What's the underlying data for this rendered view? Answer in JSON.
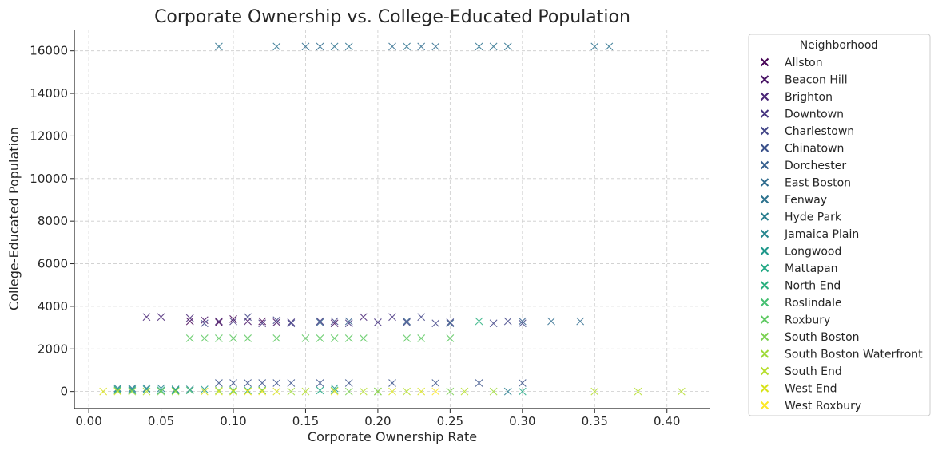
{
  "chart_data": {
    "type": "scatter",
    "title": "Corporate Ownership vs. College-Educated Population",
    "xlabel": "Corporate Ownership Rate",
    "ylabel": "College-Educated Population",
    "xlim": [
      -0.01,
      0.43
    ],
    "ylim": [
      -800,
      17000
    ],
    "xticks": [
      0.0,
      0.05,
      0.1,
      0.15,
      0.2,
      0.25,
      0.3,
      0.35,
      0.4
    ],
    "xtick_labels": [
      "0.00",
      "0.05",
      "0.10",
      "0.15",
      "0.20",
      "0.25",
      "0.30",
      "0.35",
      "0.40"
    ],
    "yticks": [
      0,
      2000,
      4000,
      6000,
      8000,
      10000,
      12000,
      14000,
      16000
    ],
    "ytick_labels": [
      "0",
      "2000",
      "4000",
      "6000",
      "8000",
      "10000",
      "12000",
      "14000",
      "16000"
    ],
    "grid": true,
    "marker": "x",
    "legend": {
      "title": "Neighborhood",
      "placement": "outside-right"
    },
    "series": [
      {
        "name": "Allston",
        "color": "#440154",
        "x": [
          0.07,
          0.09,
          0.1,
          0.12
        ],
        "y": [
          3300,
          3250,
          3400,
          3300
        ]
      },
      {
        "name": "Beacon Hill",
        "color": "#471365",
        "x": [
          0.08,
          0.11,
          0.13,
          0.17
        ],
        "y": [
          3350,
          3300,
          3250,
          3200
        ]
      },
      {
        "name": "Brighton",
        "color": "#482475",
        "x": [
          0.04,
          0.05,
          0.07,
          0.09,
          0.19
        ],
        "y": [
          3500,
          3500,
          3450,
          3300,
          3500
        ]
      },
      {
        "name": "Downtown",
        "color": "#463480",
        "x": [
          0.1,
          0.12,
          0.14,
          0.16,
          0.18,
          0.2,
          0.21
        ],
        "y": [
          3300,
          3200,
          3250,
          3300,
          3200,
          3250,
          3500
        ]
      },
      {
        "name": "Charlestown",
        "color": "#414487",
        "x": [
          0.08,
          0.11,
          0.13,
          0.14,
          0.17,
          0.22,
          0.23,
          0.24,
          0.25,
          0.28,
          0.29,
          0.3
        ],
        "y": [
          3200,
          3500,
          3350,
          3200,
          3300,
          3250,
          3500,
          3200,
          3250,
          3200,
          3300,
          3200
        ]
      },
      {
        "name": "Chinatown",
        "color": "#3b528b",
        "x": [
          0.09,
          0.1,
          0.11,
          0.12,
          0.13,
          0.14,
          0.16,
          0.18,
          0.21,
          0.24,
          0.27,
          0.3
        ],
        "y": [
          400,
          400,
          400,
          400,
          400,
          400,
          400,
          400,
          400,
          400,
          400,
          400
        ]
      },
      {
        "name": "Dorchester",
        "color": "#355f8d",
        "x": [
          0.16,
          0.18,
          0.22,
          0.25,
          0.3
        ],
        "y": [
          3250,
          3300,
          3300,
          3200,
          3300
        ]
      },
      {
        "name": "East Boston",
        "color": "#2f6c8e",
        "x": [
          0.15,
          0.16,
          0.21,
          0.23,
          0.24,
          0.32,
          0.34
        ],
        "y": [
          16200,
          16200,
          16200,
          16200,
          16200,
          3300,
          3300
        ]
      },
      {
        "name": "Fenway",
        "color": "#2c728e",
        "x": [
          0.09,
          0.13,
          0.17,
          0.18,
          0.22,
          0.27,
          0.28,
          0.29,
          0.35,
          0.36
        ],
        "y": [
          16200,
          16200,
          16200,
          16200,
          16200,
          16200,
          16200,
          16200,
          16200,
          16200
        ]
      },
      {
        "name": "Hyde Park",
        "color": "#287d8e",
        "x": [
          0.02,
          0.03,
          0.04,
          0.06,
          0.29
        ],
        "y": [
          150,
          150,
          150,
          100,
          0
        ]
      },
      {
        "name": "Jamaica Plain",
        "color": "#25858e",
        "x": [
          0.03,
          0.05,
          0.07
        ],
        "y": [
          100,
          150,
          100
        ]
      },
      {
        "name": "Longwood",
        "color": "#1f988b",
        "x": [
          0.02,
          0.04,
          0.06,
          0.08,
          0.17
        ],
        "y": [
          100,
          100,
          50,
          100,
          150
        ]
      },
      {
        "name": "Mattapan",
        "color": "#22a884",
        "x": [
          0.05,
          0.11,
          0.16,
          0.2,
          0.3
        ],
        "y": [
          50,
          50,
          50,
          0,
          0
        ]
      },
      {
        "name": "North End",
        "color": "#2ab07f",
        "x": [
          0.03,
          0.06,
          0.12,
          0.27
        ],
        "y": [
          50,
          50,
          50,
          3300
        ]
      },
      {
        "name": "Roslindale",
        "color": "#44bf70",
        "x": [
          0.02,
          0.07,
          0.1,
          0.17
        ],
        "y": [
          50,
          50,
          50,
          50
        ]
      },
      {
        "name": "Roxbury",
        "color": "#5ec962",
        "x": [
          0.07,
          0.08,
          0.09,
          0.1,
          0.11,
          0.13,
          0.15,
          0.16,
          0.17,
          0.18,
          0.19,
          0.22,
          0.23,
          0.25
        ],
        "y": [
          2500,
          2500,
          2500,
          2500,
          2500,
          2500,
          2500,
          2500,
          2500,
          2500,
          2500,
          2500,
          2500,
          2500
        ]
      },
      {
        "name": "South Boston",
        "color": "#7ad151",
        "x": [
          0.05,
          0.09,
          0.12,
          0.18,
          0.25
        ],
        "y": [
          0,
          50,
          50,
          0,
          0
        ]
      },
      {
        "name": "South Boston Waterfront",
        "color": "#9fda3a",
        "x": [
          0.03,
          0.06,
          0.1,
          0.14,
          0.2,
          0.28
        ],
        "y": [
          0,
          0,
          0,
          0,
          0,
          0
        ]
      },
      {
        "name": "South End",
        "color": "#b5de2b",
        "x": [
          0.04,
          0.11,
          0.15,
          0.19,
          0.22,
          0.26,
          0.35,
          0.38,
          0.41
        ],
        "y": [
          0,
          0,
          0,
          0,
          0,
          0,
          0,
          0,
          0
        ]
      },
      {
        "name": "West End",
        "color": "#d8e219",
        "x": [
          0.01,
          0.02,
          0.08,
          0.09,
          0.1,
          0.13,
          0.21,
          0.23
        ],
        "y": [
          0,
          0,
          0,
          0,
          0,
          0,
          0,
          0
        ]
      },
      {
        "name": "West Roxbury",
        "color": "#fde725",
        "x": [
          0.11,
          0.12,
          0.17,
          0.24
        ],
        "y": [
          0,
          0,
          0,
          0
        ]
      }
    ]
  }
}
